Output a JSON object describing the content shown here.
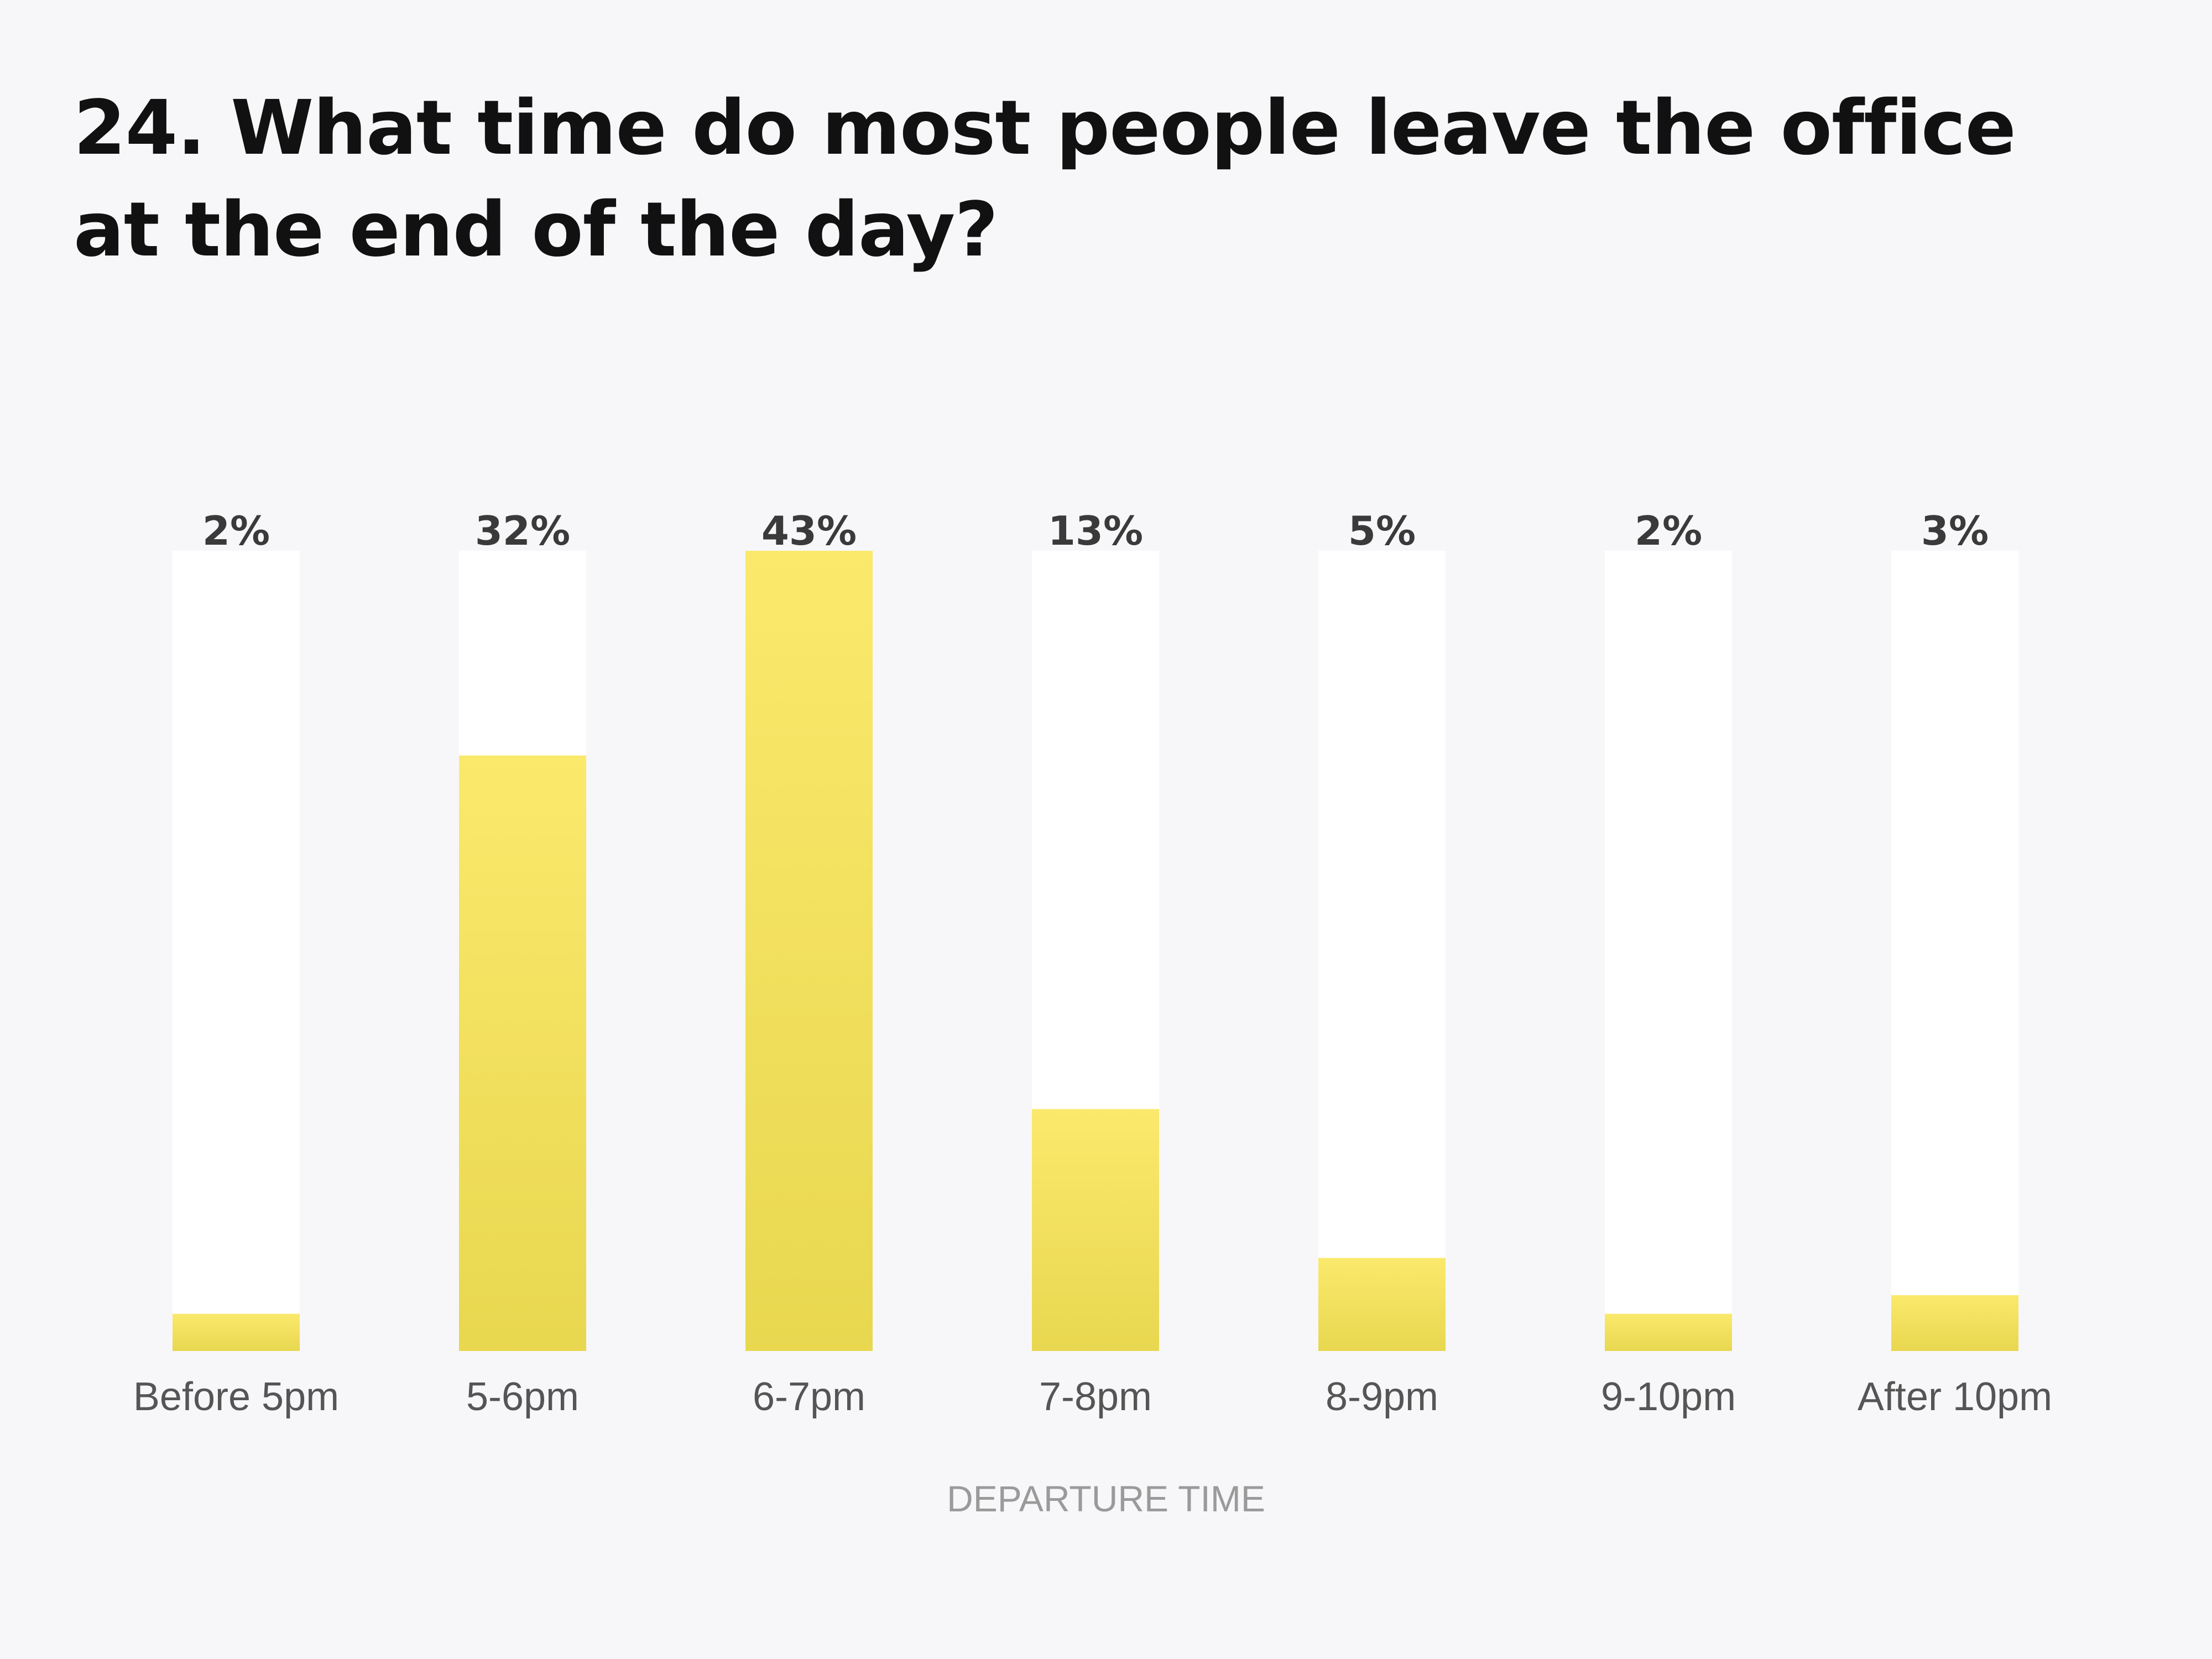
{
  "chart_data": {
    "type": "bar",
    "title": "24. What time do most people leave the office at the end of the day?",
    "xlabel": "DEPARTURE TIME",
    "ylabel": "",
    "categories": [
      "Before 5pm",
      "5-6pm",
      "6-7pm",
      "7-8pm",
      "8-9pm",
      "9-10pm",
      "After 10pm"
    ],
    "values": [
      2,
      32,
      43,
      13,
      5,
      2,
      3
    ],
    "value_labels": [
      "2%",
      "32%",
      "43%",
      "13%",
      "5%",
      "2%",
      "3%"
    ],
    "ylim": [
      0,
      43
    ],
    "grid": false,
    "legend": "none",
    "colors": {
      "bar_top": "#fbe96c",
      "bar_bottom": "#e8d74f",
      "track": "#ffffff",
      "background": "#f7f7f9",
      "value_label": "#3a3a3a",
      "category_label": "#555555",
      "axis_label": "#9a9a9a",
      "title": "#111111"
    }
  }
}
